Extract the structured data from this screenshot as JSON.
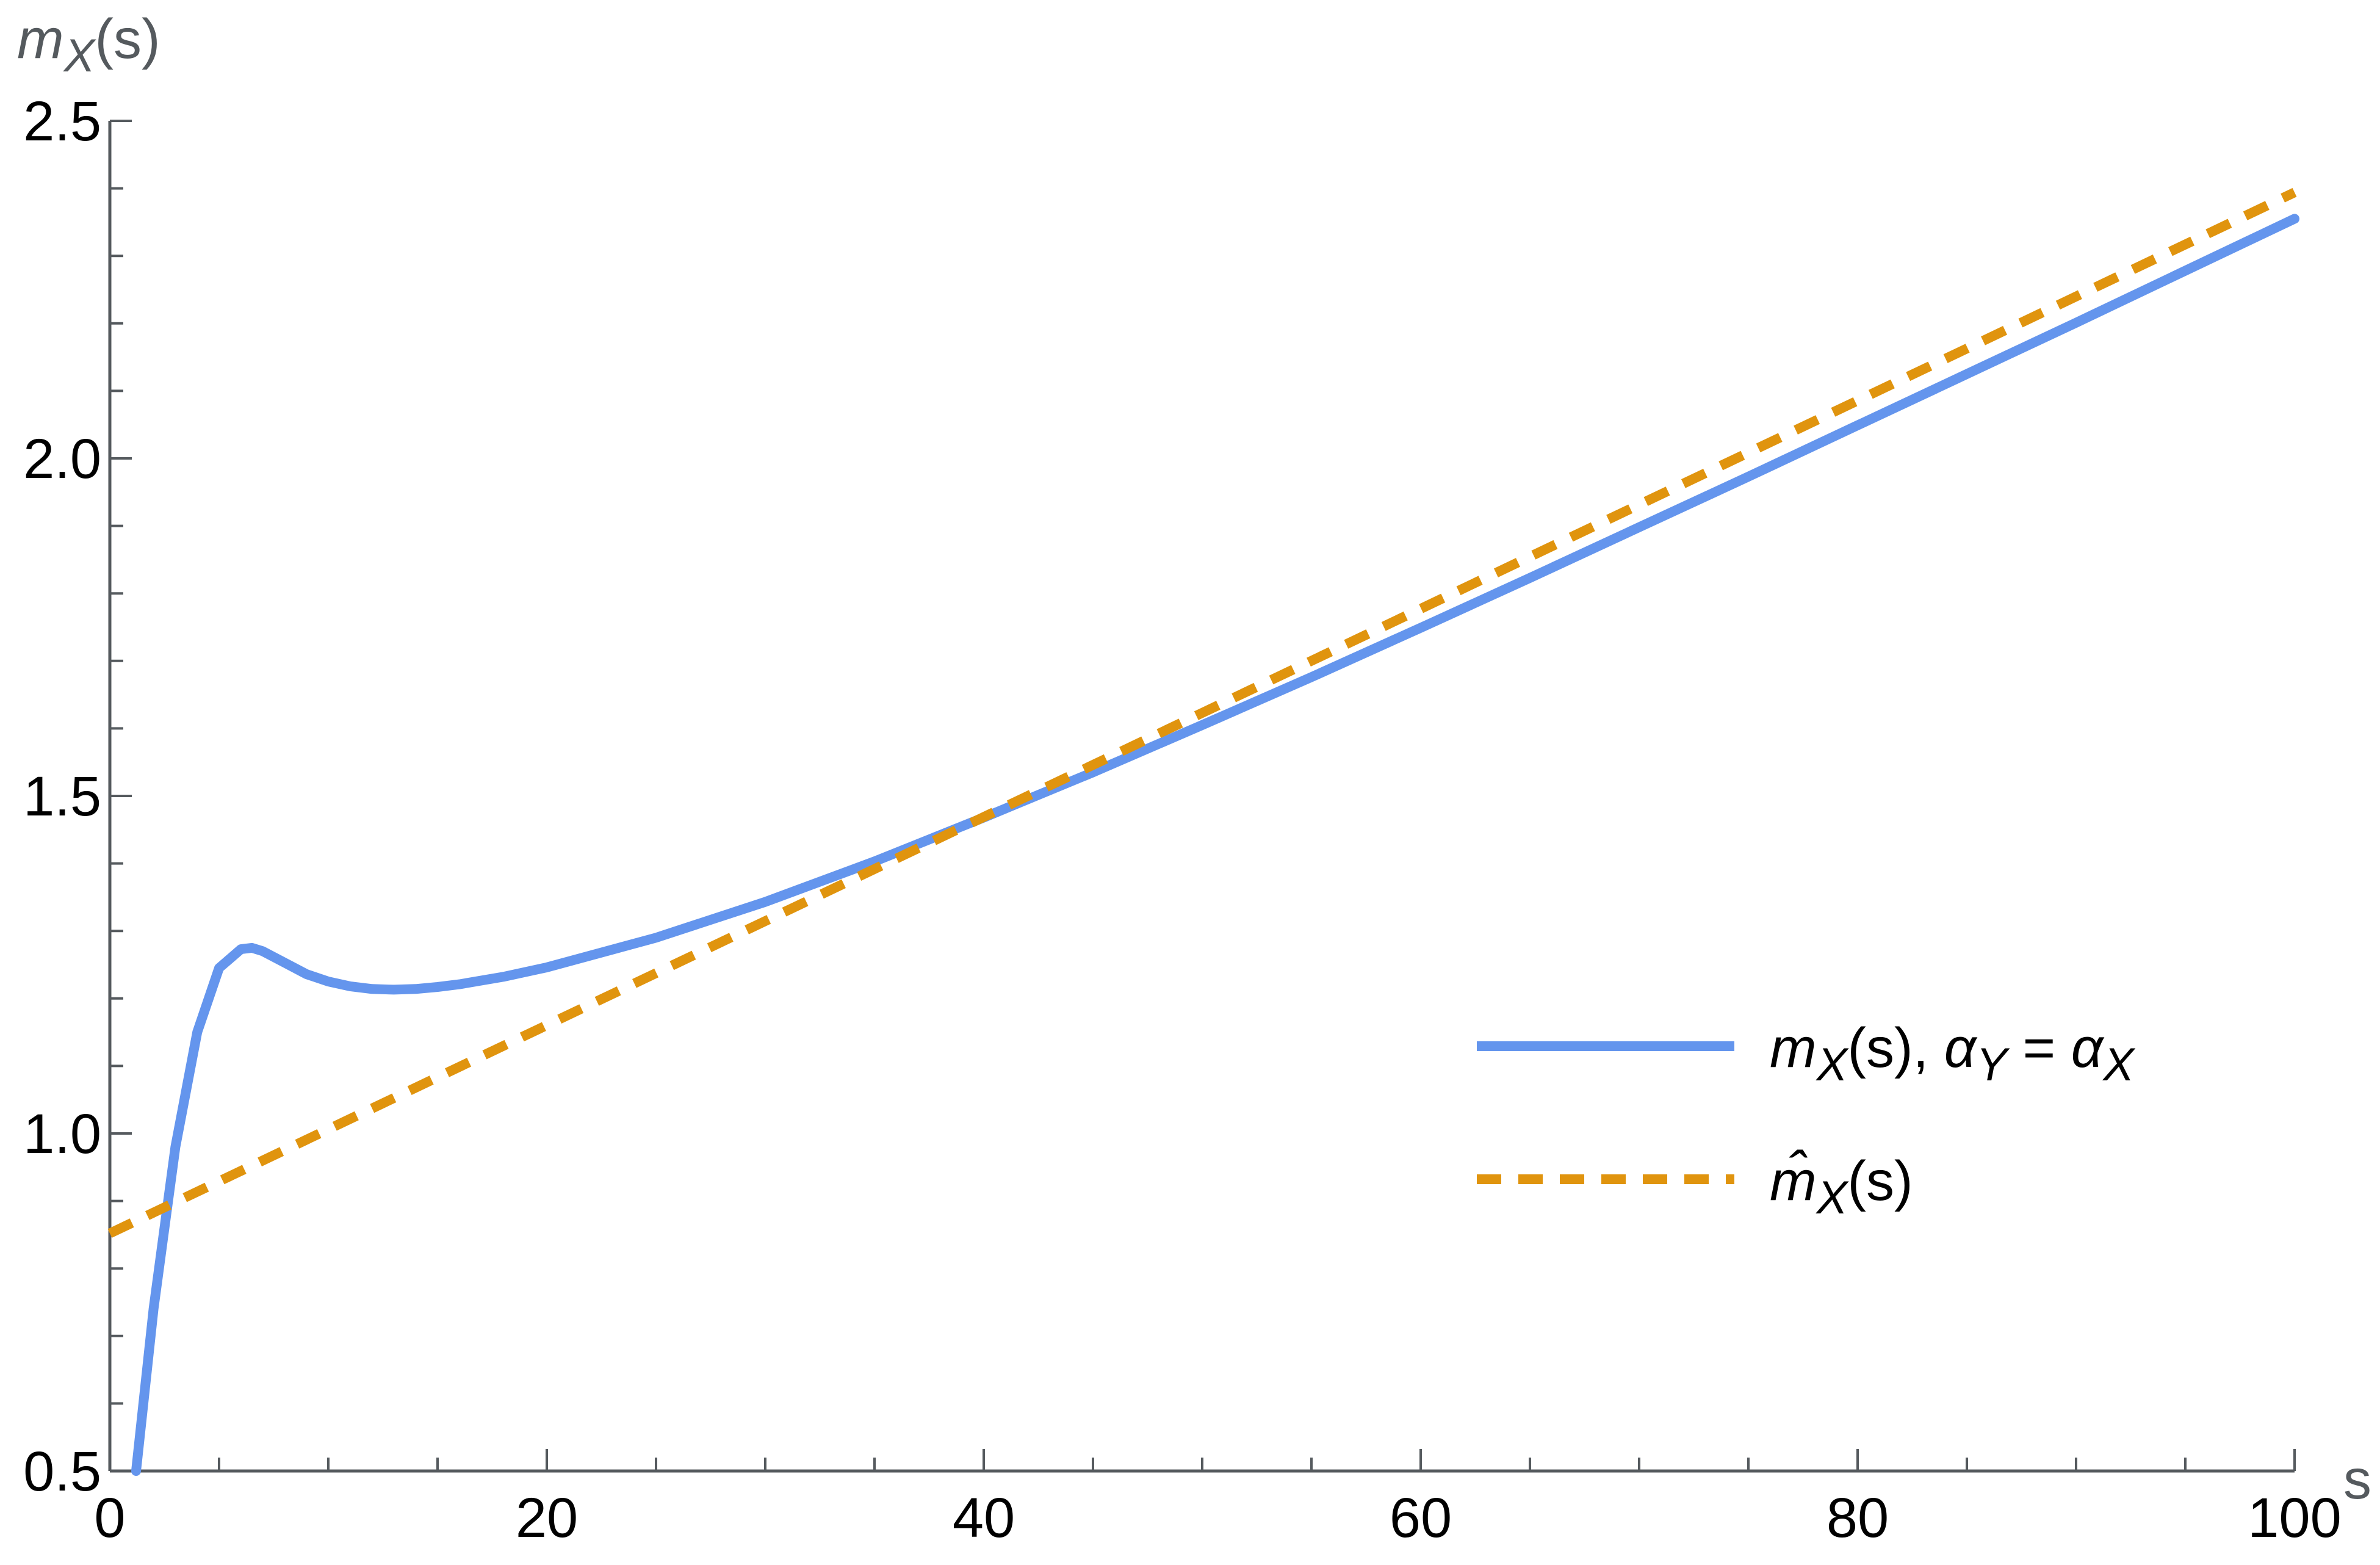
{
  "chart_data": {
    "type": "line",
    "xlabel": "s",
    "ylabel_parts": {
      "base": "m",
      "sub": "X",
      "arg": "(s)"
    },
    "xlim": [
      0,
      100
    ],
    "ylim": [
      0.5,
      2.5
    ],
    "x_ticks": [
      0,
      20,
      40,
      60,
      80,
      100
    ],
    "x_tick_labels": [
      "0",
      "20",
      "40",
      "60",
      "80",
      "100"
    ],
    "y_ticks": [
      0.5,
      1.0,
      1.5,
      2.0,
      2.5
    ],
    "y_tick_labels": [
      "0.5",
      "1.0",
      "1.5",
      "2.0",
      "2.5"
    ],
    "grid": false,
    "legend_position": "right",
    "series": [
      {
        "legend": {
          "base": "m",
          "sub": "X",
          "arg": "(s), ",
          "alpha1": "α",
          "alpha1_sub": "Y",
          "eq": " = ",
          "alpha2": "α",
          "alpha2_sub": "X"
        },
        "color": "#6495ED",
        "style": "solid",
        "x": [
          1.2,
          2,
          3,
          4,
          5,
          6,
          6.5,
          7,
          8,
          9,
          10,
          11,
          12,
          13,
          14,
          15,
          16,
          18,
          20,
          25,
          30,
          35,
          40,
          45,
          50,
          55,
          60,
          65,
          70,
          75,
          80,
          85,
          90,
          95,
          100
        ],
        "y": [
          0.5,
          0.74,
          0.98,
          1.15,
          1.245,
          1.273,
          1.275,
          1.27,
          1.253,
          1.236,
          1.225,
          1.218,
          1.214,
          1.213,
          1.214,
          1.217,
          1.221,
          1.232,
          1.246,
          1.29,
          1.343,
          1.403,
          1.468,
          1.535,
          1.605,
          1.676,
          1.749,
          1.823,
          1.898,
          1.973,
          2.049,
          2.125,
          2.201,
          2.278,
          2.355
        ]
      },
      {
        "legend": {
          "base": "m̂",
          "sub": "X",
          "arg": "(s)"
        },
        "color": "#E0940E",
        "style": "dashed",
        "x": [
          0,
          100
        ],
        "y": [
          0.852,
          2.394
        ]
      }
    ]
  }
}
